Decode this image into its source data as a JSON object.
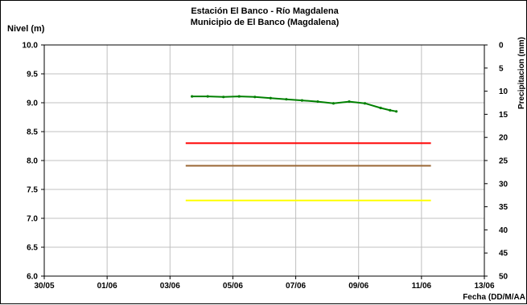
{
  "chart_data": {
    "type": "line",
    "title_lines": [
      "Estación El Banco - Río Magdalena",
      "Municipio de El Banco (Magdalena)"
    ],
    "ylabel": "Nivel (m)",
    "y2label": "Precipitacion (mm)",
    "xlabel": "Fecha (DD/M/AA",
    "ylim": [
      6.0,
      10.0
    ],
    "yticks": [
      6.0,
      6.5,
      7.0,
      7.5,
      8.0,
      8.5,
      9.0,
      9.5,
      10.0
    ],
    "ytick_labels": [
      "6.0",
      "6.5",
      "7.0",
      "7.5",
      "8.0",
      "8.5",
      "9.0",
      "9.5",
      "10.0"
    ],
    "y2lim": [
      50,
      0
    ],
    "y2ticks": [
      0,
      5,
      10,
      15,
      20,
      25,
      30,
      35,
      40,
      45,
      50
    ],
    "y2tick_labels": [
      "0",
      "5",
      "10",
      "15",
      "20",
      "25",
      "30",
      "35",
      "40",
      "45",
      "50"
    ],
    "x_range_days": [
      0,
      14
    ],
    "xticks": [
      0,
      2,
      4,
      6,
      8,
      10,
      12,
      14
    ],
    "xtick_labels": [
      "30/05",
      "01/06",
      "03/06",
      "05/06",
      "07/06",
      "09/06",
      "11/06",
      "13/06"
    ],
    "grid": true,
    "series": [
      {
        "color": "#008000",
        "x": [
          4.7,
          5.2,
          5.7,
          6.2,
          6.7,
          7.2,
          7.7,
          8.2,
          8.7,
          9.2,
          9.7,
          10.2,
          10.7,
          11.0,
          11.2
        ],
        "y": [
          9.11,
          9.11,
          9.1,
          9.11,
          9.1,
          9.08,
          9.06,
          9.04,
          9.02,
          8.99,
          9.02,
          8.99,
          8.91,
          8.87,
          8.85
        ],
        "markers": true
      },
      {
        "color": "#ff0000",
        "x": [
          4.5,
          12.3
        ],
        "y": [
          8.3,
          8.3
        ],
        "markers": false
      },
      {
        "color": "#996633",
        "x": [
          4.5,
          12.3
        ],
        "y": [
          7.91,
          7.91
        ],
        "markers": false
      },
      {
        "color": "#ffff00",
        "x": [
          4.5,
          12.3
        ],
        "y": [
          7.31,
          7.31
        ],
        "markers": false
      }
    ]
  }
}
